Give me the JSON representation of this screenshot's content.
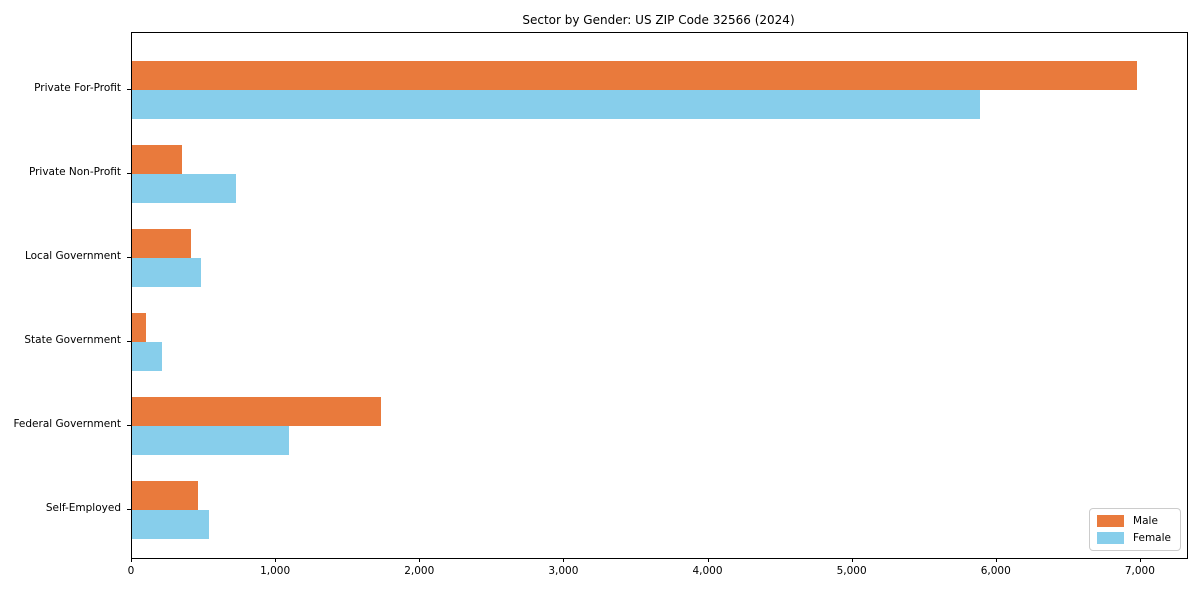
{
  "chart_data": {
    "type": "bar",
    "orientation": "horizontal",
    "title": "Sector by Gender: US ZIP Code 32566 (2024)",
    "categories": [
      "Private For-Profit",
      "Private Non-Profit",
      "Local Government",
      "State Government",
      "Federal Government",
      "Self-Employed"
    ],
    "series": [
      {
        "name": "Male",
        "color": "#e97a3c",
        "values": [
          6970,
          350,
          410,
          100,
          1730,
          460
        ]
      },
      {
        "name": "Female",
        "color": "#87ceeb",
        "values": [
          5880,
          720,
          480,
          210,
          1090,
          535
        ]
      }
    ],
    "xlabel": "",
    "ylabel": "",
    "xlim": [
      0,
      7320
    ],
    "xticks": [
      0,
      1000,
      2000,
      3000,
      4000,
      5000,
      6000,
      7000
    ],
    "xtick_labels": [
      "0",
      "1,000",
      "2,000",
      "3,000",
      "4,000",
      "5,000",
      "6,000",
      "7,000"
    ],
    "grid": false,
    "background_color": "#ffffff",
    "spine_color": "#000000",
    "legend": {
      "position": "lower right",
      "entries": [
        {
          "label": "Male",
          "color": "#e97a3c"
        },
        {
          "label": "Female",
          "color": "#87ceeb"
        }
      ]
    }
  }
}
